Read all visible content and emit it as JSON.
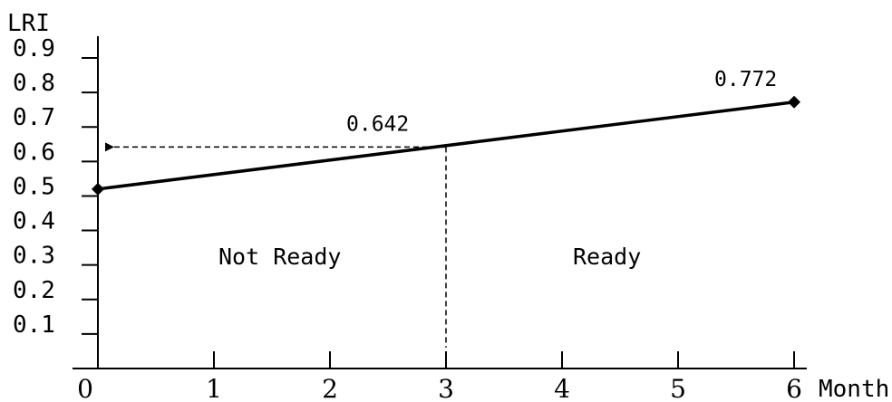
{
  "chart_data": {
    "type": "line",
    "title": "",
    "xlabel": "Month",
    "ylabel": "LRI",
    "xlim": [
      0,
      6
    ],
    "ylim": [
      0,
      0.9
    ],
    "x_ticks": [
      "0",
      "1",
      "2",
      "3",
      "4",
      "5",
      "6"
    ],
    "y_ticks": [
      "0.1",
      "0.2",
      "0.3",
      "0.4",
      "0.5",
      "0.6",
      "0.7",
      "0.8",
      "0.9"
    ],
    "grid": false,
    "series": [
      {
        "x": [
          0,
          6
        ],
        "y": [
          0.52,
          0.772
        ],
        "color": "#000000"
      }
    ],
    "annotations": {
      "point_label_end": "0.772",
      "threshold_label": "0.642",
      "threshold_x": 3,
      "threshold_y": 0.642
    },
    "regions": {
      "left": "Not Ready",
      "right": "Ready"
    }
  }
}
